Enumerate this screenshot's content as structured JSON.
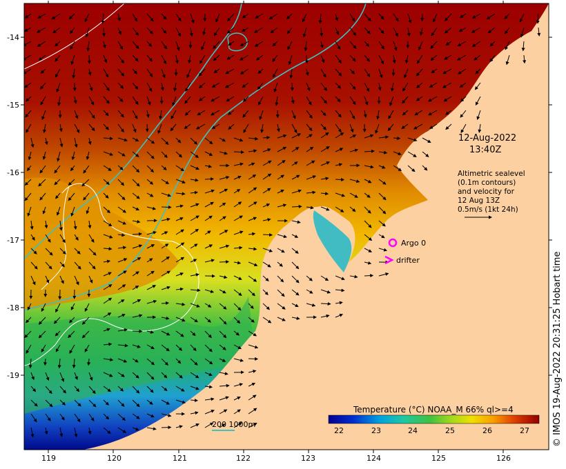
{
  "map": {
    "date_line1": "12-Aug-2022",
    "date_line2": "13:40Z",
    "altimetry_lines": [
      "Altimetric sealevel",
      "(0.1m contours)",
      "and velocity for",
      "12 Aug 13Z",
      "0.5m/s (1kt 24h)"
    ],
    "legend_argo": "Argo 0",
    "legend_drifter": "drifter",
    "bathymetry_label": "200  1000m",
    "colorbar_title": "Temperature (°C) NOAA_M 66% ql>=4",
    "colorbar_ticks": [
      "22",
      "23",
      "24",
      "25",
      "26",
      "27"
    ],
    "credit": "© IMOS 19-Aug-2022 20:31:25 Hobart time",
    "x_ticks": [
      "119",
      "120",
      "121",
      "122",
      "123",
      "124",
      "125",
      "126"
    ],
    "y_ticks": [
      "-14",
      "-15",
      "-16",
      "-17",
      "-18",
      "-19"
    ],
    "colors": {
      "land": "#fdd0a2",
      "sst_warm": "#a00000",
      "sst_cold": "#000a8c",
      "contour_200m": "#40c0c0",
      "argo": "#ff00ff"
    }
  }
}
